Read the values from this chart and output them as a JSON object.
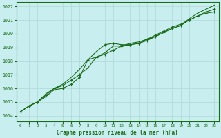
{
  "title": "Graphe pression niveau de la mer (hPa)",
  "xlabel": "Graphe pression niveau de la mer (hPa)",
  "background_color": "#c8eef0",
  "grid_color": "#b0d8d8",
  "line_color": "#1a6b1a",
  "xmin": -0.5,
  "xmax": 23.5,
  "ymin": 1013.6,
  "ymax": 1022.3,
  "yticks": [
    1014,
    1015,
    1016,
    1017,
    1018,
    1019,
    1020,
    1021,
    1022
  ],
  "xticks": [
    0,
    1,
    2,
    3,
    4,
    5,
    6,
    7,
    8,
    9,
    10,
    11,
    12,
    13,
    14,
    15,
    16,
    17,
    18,
    19,
    20,
    21,
    22,
    23
  ],
  "series1_x": [
    0,
    1,
    2,
    3,
    4,
    5,
    6,
    7,
    8,
    9,
    10,
    11,
    12,
    13,
    14,
    15,
    16,
    17,
    18,
    19,
    20,
    21,
    22,
    23
  ],
  "series1_y": [
    1014.3,
    1014.7,
    1015.0,
    1015.6,
    1016.0,
    1016.3,
    1016.8,
    1017.4,
    1018.1,
    1018.3,
    1018.6,
    1019.1,
    1019.1,
    1019.3,
    1019.4,
    1019.6,
    1019.8,
    1020.1,
    1020.4,
    1020.6,
    1021.1,
    1021.5,
    1021.8,
    1022.1
  ],
  "series2_x": [
    0,
    1,
    2,
    3,
    4,
    5,
    6,
    7,
    8,
    9,
    10,
    11,
    12,
    13,
    14,
    15,
    16,
    17,
    18,
    19,
    20,
    21,
    22,
    23
  ],
  "series2_y": [
    1014.3,
    1014.7,
    1015.0,
    1015.5,
    1016.0,
    1016.2,
    1016.6,
    1017.0,
    1017.5,
    1018.3,
    1018.5,
    1018.8,
    1019.1,
    1019.2,
    1019.3,
    1019.6,
    1019.9,
    1020.2,
    1020.5,
    1020.7,
    1021.0,
    1021.3,
    1021.6,
    1021.8
  ],
  "series3_x": [
    0,
    1,
    2,
    3,
    4,
    5,
    6,
    7,
    8,
    9,
    10,
    11,
    12,
    13,
    14,
    15,
    16,
    17,
    18,
    19,
    20,
    21,
    22,
    23
  ],
  "series3_y": [
    1014.3,
    1014.7,
    1015.0,
    1015.4,
    1015.9,
    1016.0,
    1016.3,
    1016.8,
    1018.1,
    1018.7,
    1019.2,
    1019.3,
    1019.2,
    1019.2,
    1019.3,
    1019.5,
    1019.8,
    1020.1,
    1020.4,
    1020.6,
    1021.0,
    1021.3,
    1021.5,
    1021.6
  ]
}
